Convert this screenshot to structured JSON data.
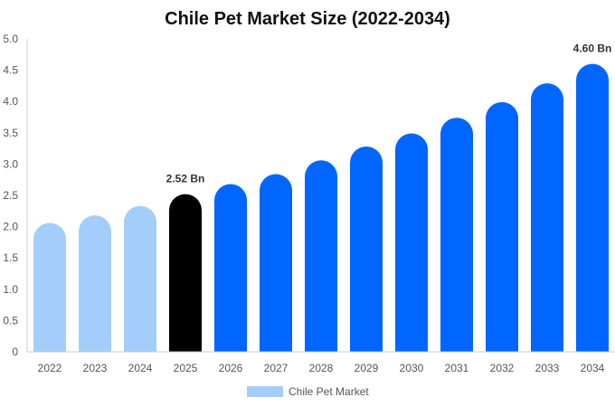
{
  "chart_data": {
    "type": "bar",
    "title": "Chile Pet Market Size (2022-2034)",
    "categories": [
      "2022",
      "2023",
      "2024",
      "2025",
      "2026",
      "2027",
      "2028",
      "2029",
      "2030",
      "2031",
      "2032",
      "2033",
      "2034"
    ],
    "series": [
      {
        "name": "Chile Pet Market",
        "values": [
          2.06,
          2.18,
          2.33,
          2.52,
          2.68,
          2.84,
          3.06,
          3.28,
          3.49,
          3.74,
          3.99,
          4.29,
          4.6
        ]
      }
    ],
    "ylim": [
      0,
      5
    ],
    "yticks": [
      "0",
      "0.5",
      "1.0",
      "1.5",
      "2.0",
      "2.5",
      "3.0",
      "3.5",
      "4.0",
      "4.5",
      "5.0"
    ],
    "data_labels": [
      {
        "category": "2025",
        "text": "2.52 Bn"
      },
      {
        "category": "2034",
        "text": "4.60 Bn"
      }
    ],
    "grid": false,
    "legend": "bottom-center",
    "colors": {
      "historical": "#a3cdfb",
      "base": "#000000",
      "forecast": "#0066ff",
      "legend": "#a3cdfb"
    }
  }
}
